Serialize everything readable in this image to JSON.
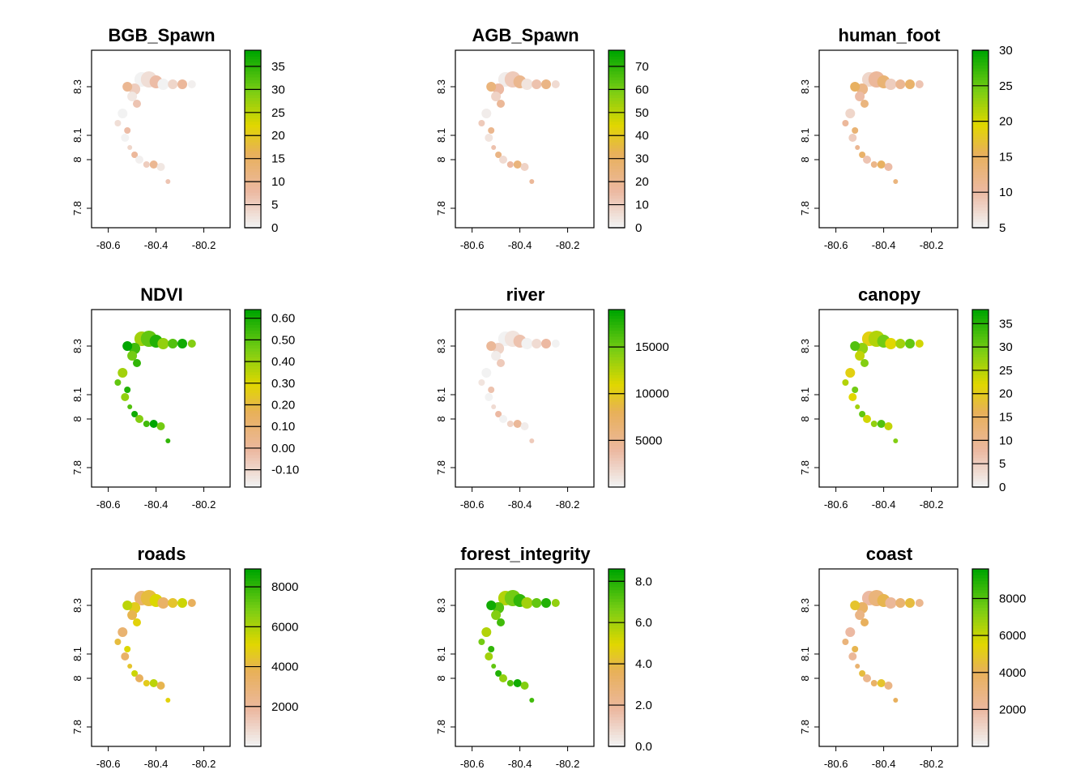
{
  "chart_data": [
    {
      "type": "heatmap",
      "title": "BGB_Spawn",
      "x_ticks": [
        "-80.6",
        "-80.4",
        "-80.2"
      ],
      "y_ticks": [
        "7.8",
        "8",
        "8.1",
        "8.3"
      ],
      "legend_ticks": [
        "0",
        "5",
        "10",
        "15",
        "20",
        "25",
        "30",
        "35"
      ],
      "legend_range": [
        0,
        38.5
      ],
      "shade": 0.1
    },
    {
      "type": "heatmap",
      "title": "AGB_Spawn",
      "x_ticks": [
        "-80.6",
        "-80.4",
        "-80.2"
      ],
      "y_ticks": [
        "7.8",
        "8",
        "8.1",
        "8.3"
      ],
      "legend_ticks": [
        "0",
        "10",
        "20",
        "30",
        "40",
        "50",
        "60",
        "70"
      ],
      "legend_range": [
        0,
        77
      ],
      "shade": 0.17
    },
    {
      "type": "heatmap",
      "title": "human_foot",
      "x_ticks": [
        "-80.6",
        "-80.4",
        "-80.2"
      ],
      "y_ticks": [
        "7.8",
        "8",
        "8.1",
        "8.3"
      ],
      "legend_ticks": [
        "5",
        "10",
        "15",
        "20",
        "25",
        "30"
      ],
      "legend_range": [
        5,
        30
      ],
      "shade": 0.25
    },
    {
      "type": "heatmap",
      "title": "NDVI",
      "x_ticks": [
        "-80.6",
        "-80.4",
        "-80.2"
      ],
      "y_ticks": [
        "7.8",
        "8",
        "8.1",
        "8.3"
      ],
      "legend_ticks": [
        "0.60",
        "0.50",
        "0.40",
        "0.30",
        "0.20",
        "0.10",
        "0.00",
        "-0.10"
      ],
      "legend_tick_values": [
        0.6,
        0.5,
        0.4,
        0.3,
        0.2,
        0.1,
        0.0,
        -0.1
      ],
      "legend_range": [
        -0.18,
        0.64
      ],
      "shade": 0.85
    },
    {
      "type": "heatmap",
      "title": "river",
      "x_ticks": [
        "-80.6",
        "-80.4",
        "-80.2"
      ],
      "y_ticks": [
        "7.8",
        "8",
        "8.1",
        "8.3"
      ],
      "legend_ticks": [
        "15000",
        "10000",
        "5000"
      ],
      "legend_tick_values": [
        15000,
        10000,
        5000
      ],
      "legend_range": [
        0,
        19000
      ],
      "shade": 0.08
    },
    {
      "type": "heatmap",
      "title": "canopy",
      "x_ticks": [
        "-80.6",
        "-80.4",
        "-80.2"
      ],
      "y_ticks": [
        "7.8",
        "8",
        "8.1",
        "8.3"
      ],
      "legend_ticks": [
        "35",
        "30",
        "25",
        "20",
        "15",
        "10",
        "5",
        "0"
      ],
      "legend_tick_values": [
        35,
        30,
        25,
        20,
        15,
        10,
        5,
        0
      ],
      "legend_range": [
        0,
        38
      ],
      "shade": 0.7
    },
    {
      "type": "heatmap",
      "title": "roads",
      "x_ticks": [
        "-80.6",
        "-80.4",
        "-80.2"
      ],
      "y_ticks": [
        "7.8",
        "8",
        "8.1",
        "8.3"
      ],
      "legend_ticks": [
        "8000",
        "6000",
        "4000",
        "2000"
      ],
      "legend_tick_values": [
        8000,
        6000,
        4000,
        2000
      ],
      "legend_range": [
        0,
        8900
      ],
      "shade": 0.5
    },
    {
      "type": "heatmap",
      "title": "forest_integrity",
      "x_ticks": [
        "-80.6",
        "-80.4",
        "-80.2"
      ],
      "y_ticks": [
        "7.8",
        "8",
        "8.1",
        "8.3"
      ],
      "legend_ticks": [
        "8.0",
        "6.0",
        "4.0",
        "2.0",
        "0.0"
      ],
      "legend_tick_values": [
        8,
        6,
        4,
        2,
        0
      ],
      "legend_range": [
        0,
        8.6
      ],
      "shade": 0.82
    },
    {
      "type": "heatmap",
      "title": "coast",
      "x_ticks": [
        "-80.6",
        "-80.4",
        "-80.2"
      ],
      "y_ticks": [
        "7.8",
        "8",
        "8.1",
        "8.3"
      ],
      "legend_ticks": [
        "8000",
        "6000",
        "4000",
        "2000"
      ],
      "legend_tick_values": [
        8000,
        6000,
        4000,
        2000
      ],
      "legend_range": [
        0,
        9600
      ],
      "shade": 0.35
    }
  ]
}
